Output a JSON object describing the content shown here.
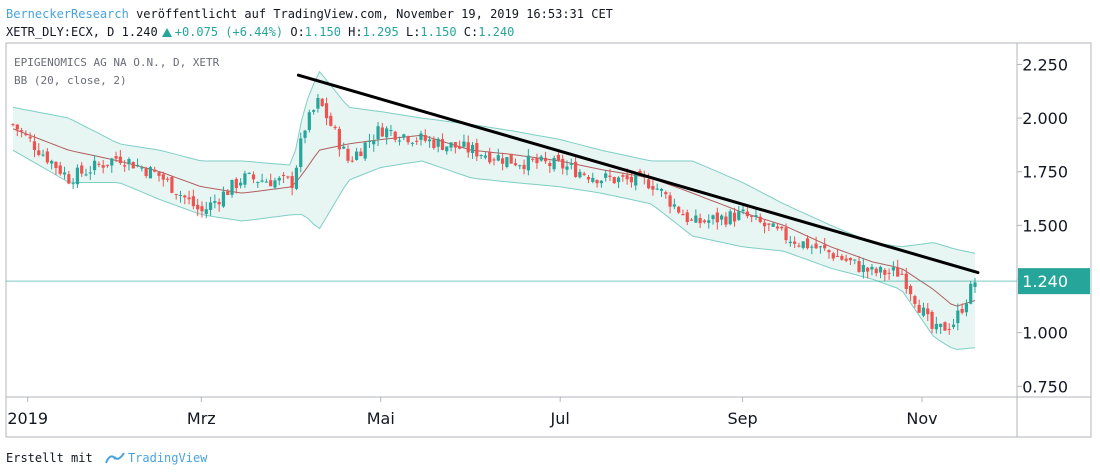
{
  "header": {
    "author": "BerneckerResearch",
    "published": "veröffentlicht auf TradingView.com, November 19, 2019 16:53:31 CET",
    "symbol": "XETR_DLY:ECX, D",
    "last": "1.240",
    "change": "+0.075 (+6.44%)",
    "o_label": "O:",
    "o_value": "1.150",
    "h_label": "H:",
    "h_value": "1.295",
    "l_label": "L:",
    "l_value": "1.150",
    "c_label": "C:",
    "c_value": "1.240"
  },
  "legend": {
    "instrument": "EPIGENOMICS AG NA O.N., D, XETR",
    "indicator": "BB (20, close, 2)"
  },
  "footer": {
    "made_with": "Erstellt mit",
    "brand": "TradingView"
  },
  "colors": {
    "up": "#26a69a",
    "down": "#ef5350",
    "basis": "#b06060",
    "band": "#7fcfc5",
    "band_fill": "#e7f5f3",
    "trendline": "#000000",
    "last_price_bg": "#26a69a"
  },
  "chart_data": {
    "type": "candlestick",
    "title": "EPIGENOMICS AG NA O.N., D, XETR",
    "ylim": [
      0.7,
      2.35
    ],
    "y_ticks": [
      "2.250",
      "2.000",
      "1.750",
      "1.500",
      "1.250",
      "1.000",
      "0.750"
    ],
    "x_ticks": [
      "2019",
      "Mrz",
      "Mai",
      "Jul",
      "Sep",
      "Nov"
    ],
    "last_price": "1.240",
    "indicator": "Bollinger Bands (20, close, 2)",
    "close_series": {
      "dates": [
        "2018-12-27",
        "2019-01-15",
        "2019-02-01",
        "2019-02-15",
        "2019-03-01",
        "2019-03-15",
        "2019-04-01",
        "2019-04-05",
        "2019-04-10",
        "2019-04-20",
        "2019-05-01",
        "2019-05-15",
        "2019-06-01",
        "2019-06-15",
        "2019-07-01",
        "2019-07-15",
        "2019-08-01",
        "2019-08-15",
        "2019-09-01",
        "2019-09-15",
        "2019-10-01",
        "2019-10-15",
        "2019-10-25",
        "2019-11-05",
        "2019-11-12",
        "2019-11-19"
      ],
      "close": [
        1.97,
        1.72,
        1.82,
        1.73,
        1.56,
        1.72,
        1.7,
        1.95,
        2.08,
        1.8,
        1.95,
        1.9,
        1.85,
        1.8,
        1.78,
        1.72,
        1.7,
        1.51,
        1.55,
        1.45,
        1.37,
        1.28,
        1.28,
        1.0,
        1.05,
        1.24
      ]
    },
    "bb_upper": [
      2.05,
      2.0,
      1.88,
      1.85,
      1.8,
      1.8,
      1.78,
      2.05,
      2.22,
      2.05,
      2.03,
      2.0,
      1.97,
      1.94,
      1.9,
      1.85,
      1.8,
      1.8,
      1.7,
      1.6,
      1.5,
      1.42,
      1.4,
      1.42,
      1.39,
      1.37
    ],
    "bb_middle": [
      1.95,
      1.85,
      1.8,
      1.75,
      1.68,
      1.65,
      1.68,
      1.75,
      1.85,
      1.88,
      1.9,
      1.92,
      1.85,
      1.83,
      1.8,
      1.76,
      1.72,
      1.65,
      1.56,
      1.5,
      1.4,
      1.33,
      1.3,
      1.2,
      1.12,
      1.15
    ],
    "bb_lower": [
      1.85,
      1.7,
      1.7,
      1.62,
      1.55,
      1.52,
      1.55,
      1.55,
      1.48,
      1.71,
      1.77,
      1.8,
      1.72,
      1.7,
      1.68,
      1.65,
      1.6,
      1.45,
      1.4,
      1.38,
      1.3,
      1.25,
      1.2,
      0.98,
      0.92,
      0.93
    ],
    "trendline": {
      "from": {
        "date": "2019-04-03",
        "value": 2.2
      },
      "to": {
        "date": "2019-11-20",
        "value": 1.28
      }
    }
  }
}
